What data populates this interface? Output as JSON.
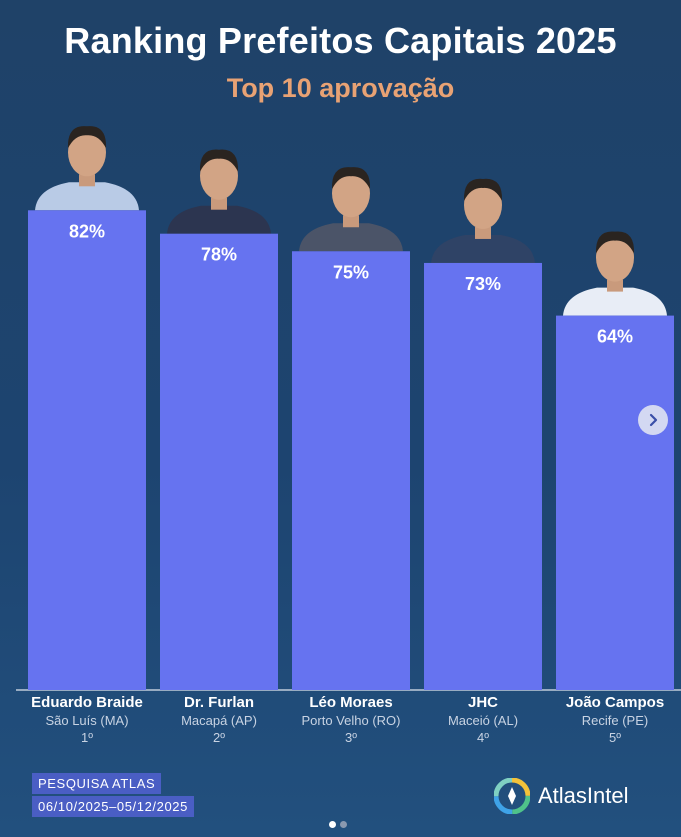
{
  "header": {
    "title": "Ranking Prefeitos Capitais 2025",
    "subtitle": "Top 10 aprovação"
  },
  "chart_data": {
    "type": "bar",
    "title": "Ranking Prefeitos Capitais 2025",
    "subtitle": "Top 10 aprovação",
    "categories": [
      "Eduardo Braide",
      "Dr. Furlan",
      "Léo Moraes",
      "JHC",
      "João Campos"
    ],
    "values": [
      82,
      78,
      75,
      73,
      64
    ],
    "value_labels": [
      "82%",
      "78%",
      "75%",
      "73%",
      "64%"
    ],
    "cities": [
      "São Luís (MA)",
      "Macapá (AP)",
      "Porto Velho (RO)",
      "Maceió (AL)",
      "Recife (PE)"
    ],
    "ranks": [
      "1º",
      "2º",
      "3º",
      "4º",
      "5º"
    ],
    "bar_color": "#6673f0",
    "ylim": [
      0,
      100
    ],
    "grid": false
  },
  "footer": {
    "source_title": "PESQUISA ATLAS",
    "source_dates": "06/10/2025–05/12/2025",
    "logo_text": "AtlasIntel"
  },
  "colors": {
    "background": "#1f4268",
    "title": "#ffffff",
    "subtitle": "#e8a274",
    "bar": "#6673f0",
    "badge": "#4a5ec4"
  },
  "icons": {
    "next": "chevron-right-icon",
    "logo": "atlas-logo-icon",
    "portrait": "person-portrait-icon"
  },
  "carousel": {
    "current": 1,
    "total": 2
  }
}
